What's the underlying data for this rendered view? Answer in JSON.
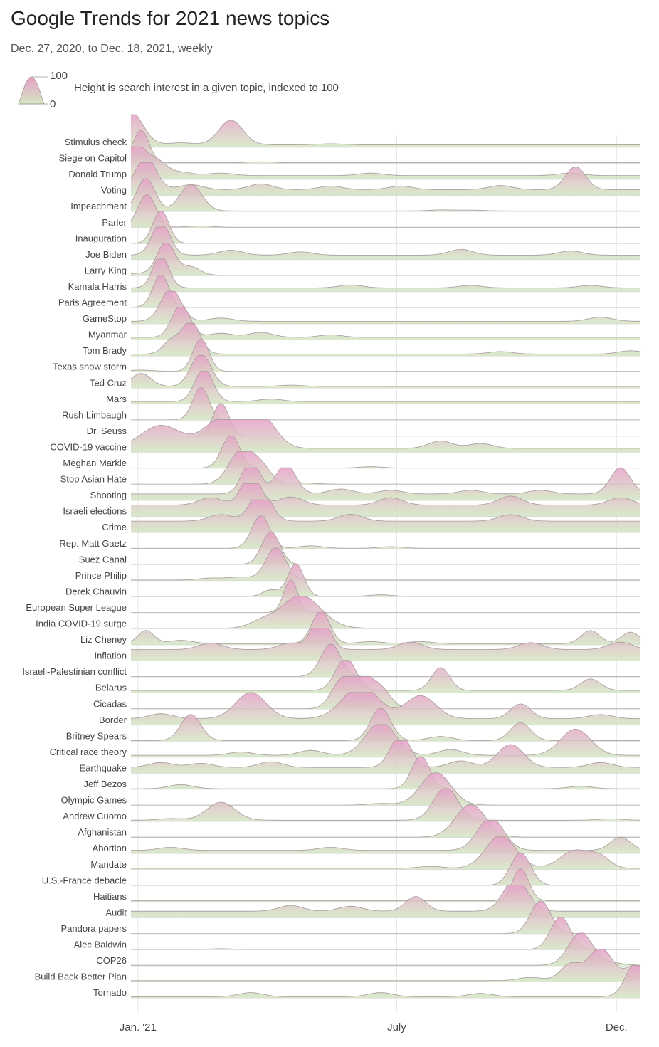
{
  "header": {
    "title": "Google Trends for 2021 news topics",
    "subtitle": "Dec. 27, 2020, to Dec. 18, 2021, weekly"
  },
  "legend": {
    "max_label": "100",
    "min_label": "0",
    "description": "Height is search interest in a given topic, indexed to 100"
  },
  "colors": {
    "peak": "#e6a0c8",
    "base": "#d3e6c2",
    "outline": "#a79a9a",
    "gridline": "#e6e6e6",
    "baseline": "#d4d4d4"
  },
  "chart_data": {
    "type": "ridgeline",
    "title": "Google Trends for 2021 news topics",
    "subtitle": "Dec. 27, 2020, to Dec. 18, 2021, weekly",
    "value_range": [
      0,
      100
    ],
    "x_range": [
      "2020-12-27",
      "2021-12-18"
    ],
    "x_unit": "weeks since Dec. 27, 2020",
    "x_weeks": [
      0,
      51
    ],
    "x_ticks": [
      {
        "label": "Jan. '21",
        "week": 0.7
      },
      {
        "label": "July",
        "week": 26.6
      },
      {
        "label": "Dec.",
        "week": 48.6
      }
    ],
    "topics": [
      {
        "name": "Stimulus check",
        "baseline": 8,
        "peaks": [
          [
            0,
            100,
            1.2
          ],
          [
            10,
            75,
            1.2
          ]
        ],
        "bumps": [
          [
            5,
            12
          ],
          [
            20,
            6
          ]
        ]
      },
      {
        "name": "Siege on Capitol",
        "baseline": 2,
        "peaks": [
          [
            1,
            100,
            0.8
          ]
        ],
        "bumps": [
          [
            13,
            6
          ]
        ]
      },
      {
        "name": "Donald Trump",
        "baseline": 12,
        "peaks": [
          [
            0.3,
            100,
            1.0
          ],
          [
            2.5,
            45,
            1.0
          ]
        ],
        "bumps": [
          [
            5,
            20
          ],
          [
            9,
            15
          ],
          [
            24,
            15
          ],
          [
            44,
            15
          ]
        ]
      },
      {
        "name": "Voting",
        "baseline": 18,
        "peaks": [
          [
            1.5,
            100,
            1.0
          ],
          [
            44.5,
            70,
            1.0
          ]
        ],
        "bumps": [
          [
            6,
            30
          ],
          [
            13,
            35
          ],
          [
            20,
            22
          ],
          [
            27,
            22
          ],
          [
            37,
            25
          ]
        ]
      },
      {
        "name": "Impeachment",
        "baseline": 2,
        "peaks": [
          [
            1.5,
            100,
            0.9
          ],
          [
            6,
            80,
            1.1
          ]
        ],
        "bumps": [
          [
            31,
            6
          ],
          [
            34,
            5
          ]
        ]
      },
      {
        "name": "Parler",
        "baseline": 1,
        "peaks": [
          [
            1.6,
            100,
            0.9
          ]
        ],
        "bumps": [
          [
            7,
            8
          ]
        ]
      },
      {
        "name": "Inauguration",
        "baseline": 1,
        "peaks": [
          [
            3,
            100,
            0.8
          ]
        ],
        "bumps": []
      },
      {
        "name": "Joe Biden",
        "baseline": 14,
        "peaks": [
          [
            3,
            100,
            0.9
          ]
        ],
        "bumps": [
          [
            10,
            30
          ],
          [
            17,
            20
          ],
          [
            33,
            35
          ],
          [
            44,
            25
          ]
        ]
      },
      {
        "name": "Larry King",
        "baseline": 2,
        "peaks": [
          [
            3.5,
            100,
            0.9
          ],
          [
            6,
            25,
            0.9
          ]
        ],
        "bumps": [
          [
            0.5,
            10
          ]
        ]
      },
      {
        "name": "Kamala Harris",
        "baseline": 12,
        "peaks": [
          [
            3,
            100,
            0.8
          ]
        ],
        "bumps": [
          [
            22,
            18
          ],
          [
            34,
            15
          ],
          [
            46,
            15
          ]
        ]
      },
      {
        "name": "Paris Agreement",
        "baseline": 2,
        "peaks": [
          [
            3,
            100,
            0.8
          ]
        ],
        "bumps": []
      },
      {
        "name": "GameStop",
        "baseline": 8,
        "peaks": [
          [
            4,
            100,
            1.0
          ]
        ],
        "bumps": [
          [
            9,
            20
          ],
          [
            47,
            25
          ]
        ]
      },
      {
        "name": "Myanmar",
        "baseline": 8,
        "peaks": [
          [
            5,
            100,
            0.9
          ]
        ],
        "bumps": [
          [
            9,
            25
          ],
          [
            13,
            30
          ],
          [
            20,
            15
          ]
        ]
      },
      {
        "name": "Tom Brady",
        "baseline": 6,
        "peaks": [
          [
            6,
            100,
            0.9
          ],
          [
            4,
            40,
            0.8
          ]
        ],
        "bumps": [
          [
            37,
            15
          ],
          [
            50,
            20
          ]
        ]
      },
      {
        "name": "Texas snow storm",
        "baseline": 2,
        "peaks": [
          [
            7,
            100,
            0.8
          ]
        ],
        "bumps": [
          [
            1,
            8
          ]
        ]
      },
      {
        "name": "Ted Cruz",
        "baseline": 5,
        "peaks": [
          [
            7,
            100,
            1.0
          ],
          [
            1,
            40,
            1.0
          ]
        ],
        "bumps": [
          [
            16,
            8
          ]
        ]
      },
      {
        "name": "Mars",
        "baseline": 8,
        "peaks": [
          [
            7.3,
            100,
            0.9
          ]
        ],
        "bumps": [
          [
            14,
            15
          ]
        ]
      },
      {
        "name": "Rush Limbaugh",
        "baseline": 1,
        "peaks": [
          [
            7,
            100,
            0.8
          ]
        ],
        "bumps": []
      },
      {
        "name": "Dr. Seuss",
        "baseline": 1,
        "peaks": [
          [
            9,
            100,
            0.8
          ]
        ],
        "bumps": []
      },
      {
        "name": "COVID-19 vaccine",
        "baseline": 12,
        "peaks": [
          [
            9.5,
            100,
            2.0
          ],
          [
            13,
            90,
            1.5
          ],
          [
            3,
            70,
            2.0
          ]
        ],
        "bumps": [
          [
            31,
            45
          ],
          [
            35,
            30
          ]
        ]
      },
      {
        "name": "Meghan Markle",
        "baseline": 1,
        "peaks": [
          [
            10,
            100,
            0.9
          ]
        ],
        "bumps": [
          [
            24,
            8
          ]
        ]
      },
      {
        "name": "Stop Asian Hate",
        "baseline": 1,
        "peaks": [
          [
            11,
            100,
            1.2
          ],
          [
            13,
            50,
            1.0
          ]
        ],
        "bumps": [
          [
            17,
            8
          ]
        ]
      },
      {
        "name": "Shooting",
        "baseline": 20,
        "peaks": [
          [
            12,
            100,
            0.9
          ],
          [
            15.5,
            90,
            1.0
          ],
          [
            49,
            80,
            1.0
          ]
        ],
        "bumps": [
          [
            21,
            30
          ],
          [
            26,
            22
          ],
          [
            34,
            22
          ],
          [
            41,
            22
          ]
        ]
      },
      {
        "name": "Israeli elections",
        "baseline": 35,
        "peaks": [
          [
            12,
            100,
            0.9
          ]
        ],
        "bumps": [
          [
            8,
            45
          ],
          [
            16,
            50
          ],
          [
            26,
            45
          ],
          [
            38,
            55
          ],
          [
            49,
            45
          ]
        ]
      },
      {
        "name": "Crime",
        "baseline": 35,
        "peaks": [
          [
            13,
            100,
            1.0
          ]
        ],
        "bumps": [
          [
            9,
            40
          ],
          [
            22,
            42
          ],
          [
            38,
            40
          ]
        ]
      },
      {
        "name": "Rep. Matt Gaetz",
        "baseline": 1,
        "peaks": [
          [
            13,
            100,
            0.9
          ]
        ],
        "bumps": [
          [
            18,
            15
          ],
          [
            26,
            10
          ]
        ]
      },
      {
        "name": "Suez Canal",
        "baseline": 1,
        "peaks": [
          [
            14,
            100,
            0.9
          ]
        ],
        "bumps": []
      },
      {
        "name": "Prince Philip",
        "baseline": 2,
        "peaks": [
          [
            14.5,
            100,
            1.0
          ]
        ],
        "bumps": [
          [
            8,
            12
          ],
          [
            11,
            18
          ]
        ]
      },
      {
        "name": "Derek Chauvin",
        "baseline": 1,
        "peaks": [
          [
            16.5,
            100,
            0.8
          ],
          [
            14,
            20,
            0.8
          ]
        ],
        "bumps": [
          [
            25,
            10
          ]
        ]
      },
      {
        "name": "European Super League",
        "baseline": 1,
        "peaks": [
          [
            16,
            100,
            0.7
          ]
        ],
        "bumps": []
      },
      {
        "name": "India COVID-19 surge",
        "baseline": 2,
        "peaks": [
          [
            17,
            100,
            2.0
          ]
        ],
        "bumps": [
          [
            13,
            35
          ]
        ]
      },
      {
        "name": "Liz Cheney",
        "baseline": 4,
        "peaks": [
          [
            19,
            100,
            0.9
          ],
          [
            1.5,
            40,
            0.8
          ],
          [
            46,
            40,
            0.9
          ],
          [
            50,
            35,
            0.9
          ]
        ],
        "bumps": [
          [
            5,
            20
          ],
          [
            24,
            12
          ],
          [
            29,
            12
          ]
        ]
      },
      {
        "name": "Inflation",
        "baseline": 35,
        "peaks": [
          [
            19,
            100,
            0.9
          ]
        ],
        "bumps": [
          [
            8,
            40
          ],
          [
            16,
            40
          ],
          [
            28,
            45
          ],
          [
            40,
            42
          ],
          [
            49,
            45
          ]
        ]
      },
      {
        "name": "Israeli-Palestinian conflict",
        "baseline": 1,
        "peaks": [
          [
            20,
            100,
            1.0
          ]
        ],
        "bumps": []
      },
      {
        "name": "Belarus",
        "baseline": 8,
        "peaks": [
          [
            21.5,
            100,
            1.0
          ],
          [
            31,
            70,
            0.9
          ],
          [
            46,
            35,
            1.0
          ]
        ],
        "bumps": []
      },
      {
        "name": "Cicadas",
        "baseline": 1,
        "peaks": [
          [
            23,
            100,
            1.0
          ],
          [
            21,
            80,
            1.0
          ],
          [
            25,
            60,
            1.0
          ]
        ],
        "bumps": []
      },
      {
        "name": "Border",
        "baseline": 20,
        "peaks": [
          [
            23,
            100,
            1.8
          ],
          [
            12,
            80,
            1.5
          ],
          [
            29,
            70,
            1.5
          ],
          [
            39,
            45,
            1.0
          ]
        ],
        "bumps": [
          [
            3,
            30
          ],
          [
            47,
            25
          ]
        ]
      },
      {
        "name": "Britney Spears",
        "baseline": 2,
        "peaks": [
          [
            25,
            100,
            1.0
          ],
          [
            6,
            80,
            1.0
          ],
          [
            39,
            55,
            1.0
          ]
        ],
        "bumps": [
          [
            31,
            25
          ]
        ]
      },
      {
        "name": "Critical race theory",
        "baseline": 6,
        "peaks": [
          [
            25,
            100,
            1.5
          ],
          [
            44.5,
            80,
            1.5
          ]
        ],
        "bumps": [
          [
            11,
            20
          ],
          [
            18,
            30
          ],
          [
            32,
            35
          ]
        ]
      },
      {
        "name": "Earthquake",
        "baseline": 18,
        "peaks": [
          [
            27,
            100,
            1.0
          ],
          [
            38,
            70,
            1.3
          ]
        ],
        "bumps": [
          [
            3,
            30
          ],
          [
            7,
            25
          ],
          [
            14,
            35
          ],
          [
            33,
            40
          ],
          [
            47,
            30
          ]
        ]
      },
      {
        "name": "Jeff Bezos",
        "baseline": 2,
        "peaks": [
          [
            29,
            100,
            0.9
          ]
        ],
        "bumps": [
          [
            5,
            25
          ],
          [
            45,
            15
          ]
        ]
      },
      {
        "name": "Olympic Games",
        "baseline": 1,
        "peaks": [
          [
            30.5,
            100,
            1.5
          ]
        ],
        "bumps": [
          [
            25,
            10
          ]
        ]
      },
      {
        "name": "Andrew Cuomo",
        "baseline": 4,
        "peaks": [
          [
            31.5,
            100,
            1.2
          ],
          [
            9,
            55,
            1.4
          ]
        ],
        "bumps": [
          [
            4,
            10
          ],
          [
            48,
            8
          ]
        ]
      },
      {
        "name": "Afghanistan",
        "baseline": 1,
        "peaks": [
          [
            34,
            100,
            1.5
          ]
        ],
        "bumps": []
      },
      {
        "name": "Abortion",
        "baseline": 10,
        "peaks": [
          [
            36,
            100,
            1.3
          ],
          [
            49,
            40,
            1.0
          ]
        ],
        "bumps": [
          [
            4,
            18
          ],
          [
            20,
            18
          ]
        ]
      },
      {
        "name": "Mandate",
        "baseline": 4,
        "peaks": [
          [
            37,
            100,
            1.5
          ],
          [
            44.5,
            55,
            1.5
          ],
          [
            47,
            30,
            1.0
          ]
        ],
        "bumps": [
          [
            30,
            12
          ]
        ]
      },
      {
        "name": "U.S.-France debacle",
        "baseline": 1,
        "peaks": [
          [
            39,
            100,
            1.0
          ]
        ],
        "bumps": []
      },
      {
        "name": "Haitians",
        "baseline": 3,
        "peaks": [
          [
            39,
            100,
            0.8
          ]
        ],
        "bumps": []
      },
      {
        "name": "Audit",
        "baseline": 20,
        "peaks": [
          [
            38.5,
            100,
            1.2
          ],
          [
            28.5,
            45,
            1.0
          ]
        ],
        "bumps": [
          [
            16,
            35
          ],
          [
            22,
            30
          ]
        ]
      },
      {
        "name": "Pandora papers",
        "baseline": 1,
        "peaks": [
          [
            41,
            100,
            1.0
          ]
        ],
        "bumps": []
      },
      {
        "name": "Alec Baldwin",
        "baseline": 1,
        "peaks": [
          [
            43,
            100,
            1.0
          ]
        ],
        "bumps": [
          [
            9,
            5
          ]
        ]
      },
      {
        "name": "COP26",
        "baseline": 2,
        "peaks": [
          [
            45,
            100,
            1.2
          ]
        ],
        "bumps": [
          [
            48,
            15
          ]
        ]
      },
      {
        "name": "Build Back Better Plan",
        "baseline": 4,
        "peaks": [
          [
            47,
            100,
            1.2
          ],
          [
            44,
            50,
            1.0
          ],
          [
            50.5,
            45,
            1.0
          ]
        ],
        "bumps": [
          [
            40,
            20
          ]
        ]
      },
      {
        "name": "Tornado",
        "baseline": 4,
        "peaks": [
          [
            50.5,
            100,
            1.0
          ]
        ],
        "bumps": [
          [
            12,
            25
          ],
          [
            25,
            25
          ],
          [
            35,
            20
          ]
        ]
      }
    ]
  }
}
